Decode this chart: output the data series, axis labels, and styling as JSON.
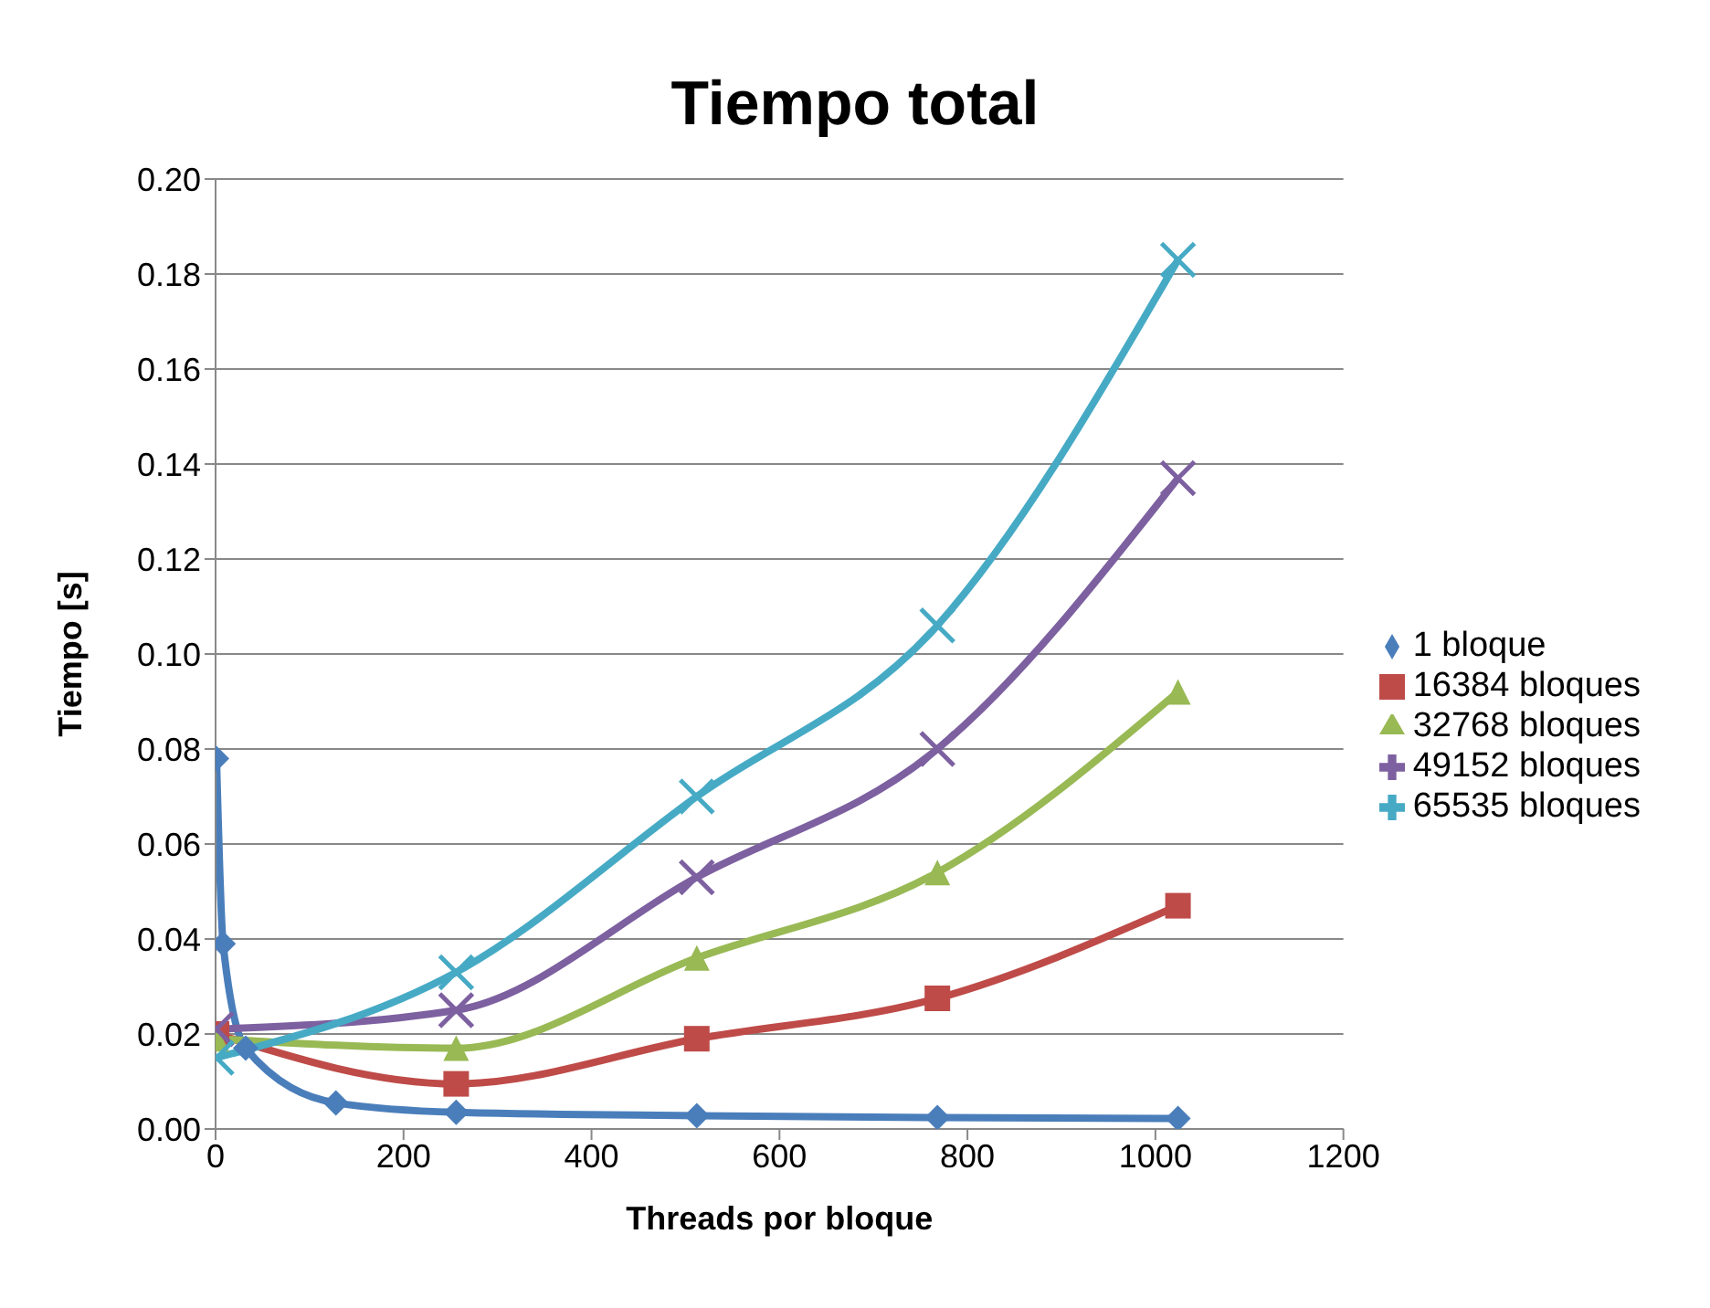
{
  "chart_data": {
    "type": "line",
    "title": "Tiempo total",
    "xlabel": "Threads por bloque",
    "ylabel": "Tiempo [s]",
    "xlim": [
      0,
      1200
    ],
    "xticks": [
      0,
      200,
      400,
      600,
      800,
      1000,
      1200
    ],
    "ylim": [
      0,
      0.2
    ],
    "yticks": [
      {
        "value": 0,
        "label": "0.00"
      },
      {
        "value": 0.02,
        "label": "0.02"
      },
      {
        "value": 0.04,
        "label": "0.04"
      },
      {
        "value": 0.06,
        "label": "0.06"
      },
      {
        "value": 0.08,
        "label": "0.08"
      },
      {
        "value": 0.1,
        "label": "0.10"
      },
      {
        "value": 0.12,
        "label": "0.12"
      },
      {
        "value": 0.14,
        "label": "0.14"
      },
      {
        "value": 0.16,
        "label": "0.16"
      },
      {
        "value": 0.18,
        "label": "0.18"
      },
      {
        "value": 0.2,
        "label": "0.20"
      }
    ],
    "grid": "y",
    "legend": "right",
    "line_style": "solid",
    "series": [
      {
        "name": "1 bloque",
        "color": "#4a7ebb",
        "marker": "diamond",
        "x": [
          1,
          8,
          32,
          128,
          256,
          512,
          768,
          1024
        ],
        "values": [
          0.078,
          0.039,
          0.017,
          0.0055,
          0.0035,
          0.0028,
          0.0024,
          0.0022
        ]
      },
      {
        "name": "16384 bloques",
        "color": "#be4b48",
        "marker": "square",
        "x": [
          1,
          256,
          512,
          768,
          1024
        ],
        "values": [
          0.02,
          0.0095,
          0.019,
          0.0275,
          0.047
        ]
      },
      {
        "name": "32768 bloques",
        "color": "#98b954",
        "marker": "triangle",
        "x": [
          1,
          256,
          512,
          768,
          1024
        ],
        "values": [
          0.019,
          0.017,
          0.036,
          0.054,
          0.092
        ]
      },
      {
        "name": "49152 bloques",
        "color": "#7d60a0",
        "marker": "cross",
        "x": [
          1,
          256,
          512,
          768,
          1024
        ],
        "values": [
          0.021,
          0.025,
          0.053,
          0.08,
          0.137
        ]
      },
      {
        "name": "65535 bloques",
        "color": "#46aac5",
        "marker": "cross",
        "x": [
          1,
          256,
          512,
          768,
          1024
        ],
        "values": [
          0.015,
          0.033,
          0.07,
          0.106,
          0.183
        ]
      }
    ]
  }
}
